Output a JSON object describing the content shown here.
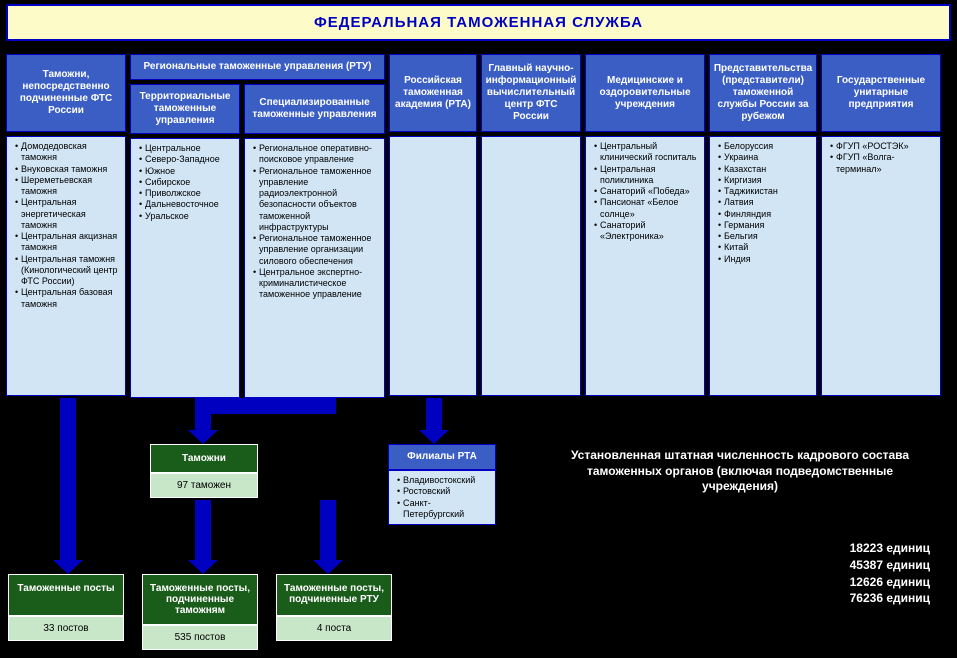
{
  "colors": {
    "root_bg": "#fdfcc9",
    "head_blue": "#3b5ec4",
    "list_blue": "#d1e5f5",
    "head_green": "#1a5c1a",
    "list_green": "#c8e6c8",
    "border": "#0000c0"
  },
  "root_title": "ФЕДЕРАЛЬНАЯ  ТАМОЖЕННАЯ  СЛУЖБА",
  "c1": {
    "head": "Таможни, непосредственно подчиненные ФТС России",
    "items": [
      "Домодедовская таможня",
      "Внуковская таможня",
      "Шереметьевская таможня",
      "Центральная энергетическая таможня",
      "Центральная акцизная таможня",
      "Центральная  таможня (Кинологический центр ФТС России)",
      "Центральная  базовая таможня"
    ]
  },
  "c2": {
    "head": "Региональные таможенные управления (РТУ)",
    "sub1": {
      "head": "Территориальные таможенные управления",
      "items": [
        "Центральное",
        "Северо-Западное",
        "Южное",
        "Сибирское",
        "Приволжское",
        "Дальневосточное",
        "Уральское"
      ]
    },
    "sub2": {
      "head": "Специализированные таможенные управления",
      "items": [
        "Региональное оперативно-поисковое управление",
        "Региональное таможенное управление радиоэлектронной безопасности объектов таможенной инфраструктуры",
        "Региональное таможенное управление организации силового обеспечения",
        "Центральное экспертно-криминалистическое таможенное управление"
      ]
    }
  },
  "c3": {
    "head": "Российская таможенная академия (РТА)"
  },
  "c4": {
    "head": "Главный научно-информационный вычислительный центр ФТС России"
  },
  "c5": {
    "head": "Медицинские и оздоровительные учреждения",
    "items": [
      "Центральный клинический госпиталь",
      "Центральная  поликлиника",
      "Санаторий «Победа»",
      "Пансионат «Белое солнце»",
      "Санаторий «Электроника»"
    ]
  },
  "c6": {
    "head": "Представительства (представители) таможенной службы России за рубежом",
    "items": [
      "Белоруссия",
      "Украина",
      "Казахстан",
      "Киргизия",
      "Таджикистан",
      "Латвия",
      "Финляндия",
      "Германия",
      "Бельгия",
      "Китай",
      "Индия"
    ]
  },
  "c7": {
    "head": "Государственные унитарные предприятия",
    "items": [
      "ФГУП «РОСТЭК»",
      "ФГУП «Волга-терминал»"
    ]
  },
  "g_customs": {
    "head": "Таможни",
    "val": "97 таможен"
  },
  "g_branches": {
    "head": "Филиалы РТА",
    "items": [
      "Владивостокский",
      "Ростовский",
      "Санкт-Петербургский"
    ]
  },
  "g_posts1": {
    "head": "Таможенные посты",
    "val": "33 постов"
  },
  "g_posts2": {
    "head": "Таможенные посты, подчиненные таможням",
    "val": "535 постов"
  },
  "g_posts3": {
    "head": "Таможенные посты, подчиненные РТУ",
    "val": "4 поста"
  },
  "summary": "Установленная штатная  численность кадрового состава таможенных органов (включая  подведомственные учреждения)",
  "figures": [
    "18223 единиц",
    "45387 единиц",
    "12626 единиц",
    "76236 единиц"
  ],
  "layout": {
    "w1": 120,
    "w2": 255,
    "w3": 88,
    "w4": 100,
    "w5": 120,
    "w6": 108,
    "w7": 120,
    "list_h": 260
  }
}
